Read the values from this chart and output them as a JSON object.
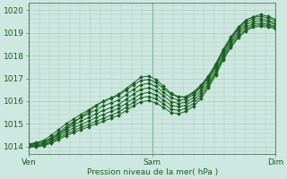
{
  "title": "",
  "xlabel": "Pression niveau de la mer( hPa )",
  "ylabel": "",
  "ylim": [
    1013.7,
    1020.3
  ],
  "xlim": [
    0,
    48
  ],
  "yticks": [
    1014,
    1015,
    1016,
    1017,
    1018,
    1019,
    1020
  ],
  "xtick_positions": [
    0,
    24,
    48
  ],
  "xtick_labels": [
    "Ven",
    "Sam",
    "Dim"
  ],
  "vlines": [
    0,
    24,
    48
  ],
  "background_color": "#cde8e0",
  "grid_color": "#aac8be",
  "line_color": "#1a6020",
  "marker": "D",
  "marker_size": 2.0,
  "series": [
    [
      1014.1,
      1014.15,
      1014.2,
      1014.35,
      1014.55,
      1014.8,
      1015.05,
      1015.3,
      1015.55,
      1015.8,
      1016.0,
      1016.15,
      1016.3,
      1016.55,
      1016.8,
      1017.05,
      1017.1,
      1016.95,
      1016.65,
      1016.35,
      1016.2,
      1016.15,
      1016.35,
      1016.65,
      1017.05,
      1017.6,
      1018.2,
      1018.75,
      1019.2,
      1019.55,
      1019.7,
      1019.8,
      1019.72,
      1019.58
    ],
    [
      1014.12,
      1014.18,
      1014.28,
      1014.5,
      1014.75,
      1015.0,
      1015.22,
      1015.42,
      1015.62,
      1015.82,
      1016.0,
      1016.12,
      1016.25,
      1016.48,
      1016.72,
      1016.9,
      1016.95,
      1016.82,
      1016.55,
      1016.3,
      1016.18,
      1016.2,
      1016.4,
      1016.7,
      1017.1,
      1017.65,
      1018.28,
      1018.82,
      1019.25,
      1019.55,
      1019.68,
      1019.72,
      1019.65,
      1019.52
    ],
    [
      1014.08,
      1014.12,
      1014.22,
      1014.4,
      1014.62,
      1014.88,
      1015.1,
      1015.28,
      1015.45,
      1015.62,
      1015.8,
      1015.92,
      1016.05,
      1016.28,
      1016.52,
      1016.72,
      1016.78,
      1016.65,
      1016.38,
      1016.15,
      1016.05,
      1016.08,
      1016.28,
      1016.6,
      1017.0,
      1017.55,
      1018.18,
      1018.72,
      1019.15,
      1019.45,
      1019.6,
      1019.62,
      1019.55,
      1019.42
    ],
    [
      1014.05,
      1014.08,
      1014.15,
      1014.32,
      1014.52,
      1014.75,
      1014.95,
      1015.12,
      1015.28,
      1015.45,
      1015.6,
      1015.72,
      1015.85,
      1016.08,
      1016.32,
      1016.52,
      1016.58,
      1016.48,
      1016.22,
      1015.98,
      1015.9,
      1015.95,
      1016.15,
      1016.48,
      1016.9,
      1017.45,
      1018.08,
      1018.62,
      1019.05,
      1019.35,
      1019.5,
      1019.52,
      1019.48,
      1019.35
    ],
    [
      1014.02,
      1014.05,
      1014.1,
      1014.25,
      1014.45,
      1014.65,
      1014.82,
      1014.98,
      1015.12,
      1015.28,
      1015.42,
      1015.55,
      1015.68,
      1015.9,
      1016.12,
      1016.32,
      1016.38,
      1016.28,
      1016.05,
      1015.82,
      1015.75,
      1015.82,
      1016.02,
      1016.35,
      1016.78,
      1017.32,
      1017.98,
      1018.52,
      1018.95,
      1019.25,
      1019.4,
      1019.42,
      1019.38,
      1019.28
    ],
    [
      1014.0,
      1014.02,
      1014.08,
      1014.2,
      1014.38,
      1014.55,
      1014.7,
      1014.85,
      1014.98,
      1015.12,
      1015.25,
      1015.38,
      1015.52,
      1015.72,
      1015.95,
      1016.15,
      1016.2,
      1016.1,
      1015.88,
      1015.65,
      1015.6,
      1015.68,
      1015.9,
      1016.22,
      1016.68,
      1017.22,
      1017.88,
      1018.42,
      1018.85,
      1019.15,
      1019.32,
      1019.35,
      1019.32,
      1019.22
    ],
    [
      1013.98,
      1014.0,
      1014.05,
      1014.15,
      1014.32,
      1014.48,
      1014.62,
      1014.75,
      1014.88,
      1015.0,
      1015.12,
      1015.25,
      1015.38,
      1015.58,
      1015.8,
      1015.98,
      1016.02,
      1015.92,
      1015.72,
      1015.5,
      1015.45,
      1015.55,
      1015.78,
      1016.1,
      1016.58,
      1017.15,
      1017.82,
      1018.35,
      1018.78,
      1019.08,
      1019.25,
      1019.28,
      1019.25,
      1019.18
    ]
  ]
}
